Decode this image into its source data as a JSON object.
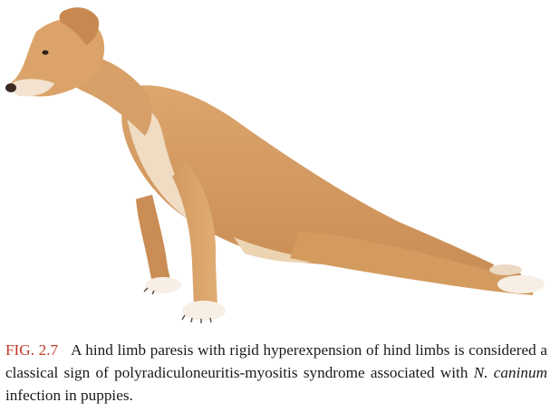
{
  "figure": {
    "label": "FIG. 2.7",
    "colors": {
      "fur": "#d9a066",
      "fur_shade": "#c88c52",
      "fur_light": "#f1dcc0",
      "paw": "#f7efe6",
      "nose": "#3a2a22",
      "caption_label": "#c0392b"
    },
    "image_content_icon": "dog-illustration"
  },
  "caption": {
    "text_part1": "A hind limb paresis with rigid hyperexpension of hind limbs is considered a classical sign of polyradiculoneuritis-myositis syndrome associated with ",
    "italic_term": "N. caninum",
    "text_part2": " infection in puppies."
  }
}
